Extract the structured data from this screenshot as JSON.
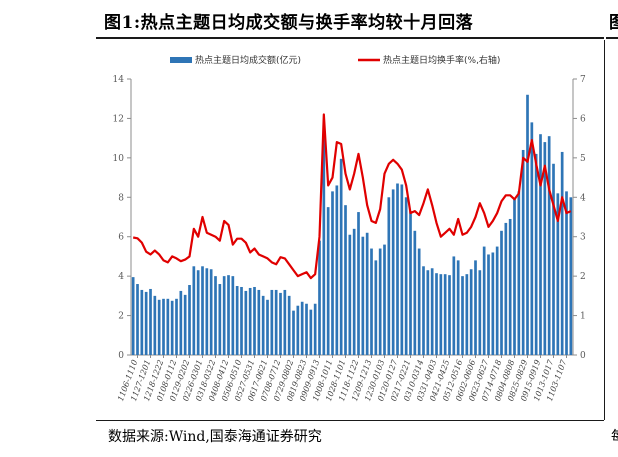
{
  "header": {
    "title": "图1:热点主题日均成交额与换手率均较十月回落",
    "title_cut": "图",
    "source": "数据来源:Wind,国泰海通证券研究",
    "source_cut": "每"
  },
  "chart_data": {
    "type": "bar+line",
    "title": "热点主题日均成交额与换手率均较十月回落",
    "y_left": {
      "label": "亿元",
      "min": 0,
      "max": 14,
      "ticks": [
        "0",
        "2",
        "4",
        "6",
        "8",
        "10",
        "12",
        "14"
      ]
    },
    "y_right": {
      "label": "%",
      "min": 0,
      "max": 7,
      "ticks": [
        "0",
        "1",
        "2",
        "3",
        "4",
        "5",
        "6",
        "7"
      ]
    },
    "legend": [
      "热点主题日均成交额(亿元)",
      "热点主题日均换手率(%,右轴)"
    ],
    "legend_position": "top-center",
    "colors": {
      "bar": "#2e75b6",
      "line": "#e00000",
      "axis": "#8c8c8c"
    },
    "x_labels": [
      "1106-1110",
      "1127-1201",
      "1218-1222",
      "0108-0112",
      "0129-0202",
      "0226-0301",
      "0318-0322",
      "0408-0412",
      "0506-0510",
      "0527-0531",
      "0617-0621",
      "0708-0712",
      "0729-0802",
      "0819-0823",
      "0909-0913",
      "1008-1011",
      "1028-1101",
      "1118-1122",
      "1209-1213",
      "1230-0103",
      "0120-0127",
      "0217-0221",
      "0310-0314",
      "0331-0403",
      "0421-0425",
      "0512-0516",
      "0602-0606",
      "0623-0627",
      "0714-0718",
      "0804-0808",
      "0825-0829",
      "0915-0919",
      "1013-1017",
      "1103-1107"
    ],
    "turnover_bars": [
      3.95,
      3.6,
      3.3,
      3.2,
      3.35,
      3.0,
      2.8,
      2.85,
      2.85,
      2.75,
      2.85,
      3.25,
      3.05,
      3.55,
      4.5,
      4.3,
      4.5,
      4.4,
      4.35,
      4.0,
      3.6,
      4.0,
      4.05,
      4.0,
      3.5,
      3.45,
      3.25,
      3.4,
      3.45,
      3.3,
      3.0,
      2.8,
      3.3,
      3.3,
      3.15,
      3.3,
      3.0,
      2.25,
      2.5,
      2.7,
      2.6,
      2.3,
      2.6,
      5.8,
      11.5,
      7.5,
      8.3,
      8.6,
      9.95,
      7.6,
      6.1,
      6.4,
      7.25,
      6.0,
      6.2,
      5.4,
      4.8,
      5.4,
      5.6,
      8.0,
      8.4,
      8.7,
      8.65,
      8.0,
      7.3,
      6.3,
      5.4,
      4.5,
      4.3,
      4.4,
      4.15,
      4.1,
      4.1,
      4.05,
      5.0,
      4.8,
      4.0,
      4.1,
      4.35,
      4.8,
      4.3,
      5.5,
      5.1,
      5.2,
      5.5,
      6.3,
      6.7,
      6.9,
      7.9,
      8.3,
      10.4,
      13.2,
      11.8,
      10.2,
      11.2,
      10.8,
      11.1,
      9.7,
      8.2,
      10.3,
      8.3,
      8.0
    ],
    "turnover_rate_line": [
      2.98,
      2.96,
      2.85,
      2.62,
      2.55,
      2.65,
      2.55,
      2.4,
      2.35,
      2.5,
      2.45,
      2.38,
      2.42,
      2.5,
      3.2,
      3.0,
      3.5,
      3.1,
      3.05,
      3.0,
      2.9,
      3.4,
      3.3,
      2.8,
      2.95,
      2.95,
      2.85,
      2.6,
      2.7,
      2.55,
      2.5,
      2.45,
      2.35,
      2.3,
      2.48,
      2.45,
      2.3,
      2.15,
      2.0,
      2.05,
      2.1,
      1.95,
      2.05,
      3.0,
      6.1,
      4.3,
      4.5,
      5.4,
      5.35,
      4.6,
      4.2,
      4.6,
      5.1,
      4.5,
      3.8,
      3.4,
      3.35,
      3.7,
      4.6,
      4.85,
      4.95,
      4.85,
      4.7,
      4.3,
      3.6,
      3.65,
      3.55,
      3.85,
      4.2,
      3.8,
      3.35,
      3.0,
      3.1,
      3.2,
      3.05,
      3.45,
      3.05,
      3.1,
      3.25,
      3.5,
      3.85,
      3.6,
      3.25,
      3.4,
      3.6,
      3.9,
      4.05,
      4.05,
      3.95,
      4.1,
      5.0,
      4.9,
      5.45,
      4.85,
      4.3,
      4.8,
      4.2,
      3.8,
      3.4,
      4.0,
      3.6,
      3.65
    ]
  }
}
